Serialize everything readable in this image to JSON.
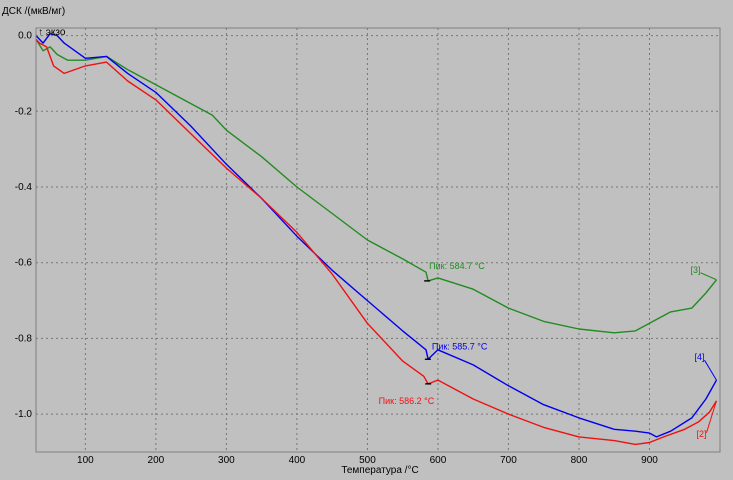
{
  "chart_data": {
    "type": "line",
    "ylabel": "ДСК /(мкВ/мг)",
    "exo_label": "↑ экзо",
    "xlabel": "Температура /°C",
    "xlim": [
      30,
      1000
    ],
    "ylim": [
      -1.1,
      0.02
    ],
    "grid": true,
    "xticks": [
      100,
      200,
      300,
      400,
      500,
      600,
      700,
      800,
      900
    ],
    "yticks": [
      0.0,
      -0.2,
      -0.4,
      -0.6,
      -0.8,
      -1.0
    ],
    "ytick_labels": [
      "0.0",
      "-0.2",
      "-0.4",
      "-0.6",
      "-0.8",
      "-1.0"
    ],
    "series": [
      {
        "name": "[3]",
        "color": "#228b22",
        "x": [
          30,
          40,
          50,
          60,
          75,
          100,
          130,
          160,
          200,
          250,
          280,
          300,
          350,
          400,
          450,
          500,
          550,
          583,
          586,
          600,
          650,
          700,
          750,
          800,
          850,
          880,
          900,
          930,
          960,
          980,
          995
        ],
        "y": [
          -0.01,
          -0.04,
          -0.03,
          -0.05,
          -0.065,
          -0.065,
          -0.055,
          -0.09,
          -0.13,
          -0.18,
          -0.21,
          -0.25,
          -0.32,
          -0.4,
          -0.47,
          -0.54,
          -0.59,
          -0.625,
          -0.648,
          -0.64,
          -0.67,
          -0.72,
          -0.755,
          -0.775,
          -0.785,
          -0.78,
          -0.76,
          -0.73,
          -0.72,
          -0.68,
          -0.645
        ]
      },
      {
        "name": "[4]",
        "color": "#0000ee",
        "x": [
          30,
          40,
          50,
          60,
          70,
          100,
          130,
          160,
          200,
          250,
          300,
          350,
          400,
          450,
          500,
          550,
          583,
          586,
          600,
          650,
          700,
          750,
          800,
          850,
          880,
          900,
          910,
          930,
          960,
          980,
          995
        ],
        "y": [
          0.0,
          -0.02,
          0.005,
          0.0,
          -0.02,
          -0.06,
          -0.055,
          -0.1,
          -0.15,
          -0.24,
          -0.34,
          -0.43,
          -0.53,
          -0.62,
          -0.7,
          -0.78,
          -0.83,
          -0.855,
          -0.83,
          -0.87,
          -0.925,
          -0.975,
          -1.01,
          -1.04,
          -1.045,
          -1.05,
          -1.06,
          -1.045,
          -1.01,
          -0.96,
          -0.91
        ]
      },
      {
        "name": "[2]",
        "color": "#ee1111",
        "x": [
          30,
          35,
          45,
          55,
          70,
          100,
          130,
          160,
          200,
          250,
          300,
          350,
          400,
          450,
          500,
          550,
          580,
          586,
          600,
          650,
          700,
          750,
          800,
          850,
          880,
          900,
          920,
          950,
          970,
          985,
          995
        ],
        "y": [
          -0.01,
          -0.02,
          -0.03,
          -0.08,
          -0.1,
          -0.08,
          -0.07,
          -0.12,
          -0.17,
          -0.26,
          -0.35,
          -0.43,
          -0.52,
          -0.63,
          -0.76,
          -0.86,
          -0.9,
          -0.92,
          -0.91,
          -0.96,
          -1.0,
          -1.035,
          -1.06,
          -1.07,
          -1.08,
          -1.075,
          -1.06,
          -1.04,
          -1.02,
          -0.995,
          -0.965
        ]
      }
    ],
    "annotations": [
      {
        "text": "Пик: 584.7 °C",
        "color": "#228b22",
        "x": 584.7,
        "y": -0.648
      },
      {
        "text": "Пик: 585.7 °C",
        "color": "#0000ee",
        "x": 585.7,
        "y": -0.855
      },
      {
        "text": "Пик: 586.2 °C",
        "color": "#ee1111",
        "x": 586.2,
        "y": -0.92
      }
    ]
  }
}
